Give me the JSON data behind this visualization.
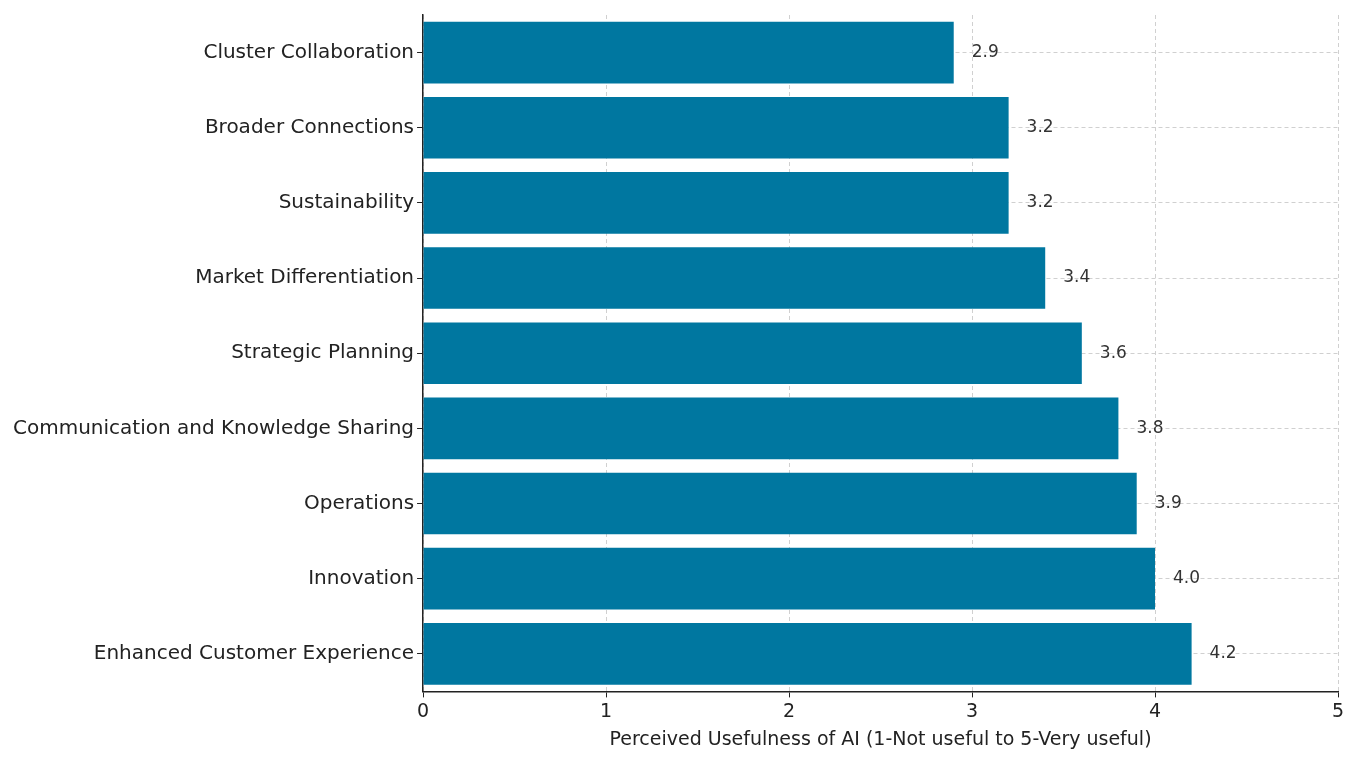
{
  "chart_data": {
    "type": "bar",
    "orientation": "horizontal",
    "xlabel": "Perceived Usefulness of AI (1-Not useful to 5-Very useful)",
    "categories": [
      "Cluster Collaboration",
      "Broader Connections",
      "Sustainability",
      "Market Differentiation",
      "Strategic Planning",
      "Communication and Knowledge Sharing",
      "Operations",
      "Innovation",
      "Enhanced Customer Experience"
    ],
    "values": [
      2.9,
      3.2,
      3.2,
      3.4,
      3.6,
      3.8,
      3.9,
      4.0,
      4.2
    ],
    "value_labels": [
      "2.9",
      "3.2",
      "3.2",
      "3.4",
      "3.6",
      "3.8",
      "3.9",
      "4.0",
      "4.2"
    ],
    "color": "#0077a0",
    "xlim": [
      0,
      5
    ],
    "xticks": [
      0,
      1,
      2,
      3,
      4,
      5
    ],
    "grid": true,
    "legend": false
  }
}
